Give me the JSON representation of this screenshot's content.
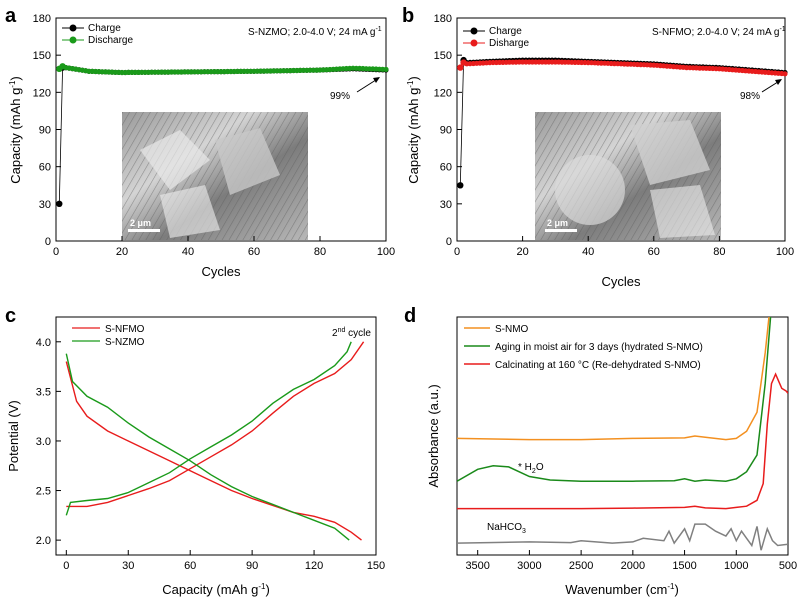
{
  "chart_data": [
    {
      "panel": "a",
      "type": "scatter",
      "title": "",
      "xlabel": "Cycles",
      "ylabel": "Capacity (mAh g-1)",
      "ylabel_main": "Capacity (mAh g",
      "ylabel_sup": "-1",
      "ylabel_close": ")",
      "xlim": [
        0,
        100
      ],
      "ylim": [
        0,
        180
      ],
      "xticks": [
        0,
        20,
        40,
        60,
        80,
        100
      ],
      "yticks": [
        0,
        30,
        60,
        90,
        120,
        150,
        180
      ],
      "condition": "S-NZMO; 2.0-4.0 V; 24 mA g-1",
      "condition_main": "S-NZMO; 2.0-4.0 V; 24 mA g",
      "condition_sup": "-1",
      "retention_label": "99%",
      "inset_scale": "2 μm",
      "series": [
        {
          "name": "Charge",
          "color": "#000000",
          "first": [
            1,
            30
          ],
          "second": [
            2,
            140
          ],
          "level_points": [
            [
              3,
              140
            ],
            [
              10,
              137
            ],
            [
              20,
              136
            ],
            [
              40,
              136.5
            ],
            [
              60,
              137
            ],
            [
              80,
              138
            ],
            [
              90,
              139
            ],
            [
              100,
              138
            ]
          ]
        },
        {
          "name": "Discharge",
          "color": "#1a9a1a",
          "first": [
            1,
            139
          ],
          "second": [
            2,
            141
          ],
          "level_points": [
            [
              3,
              140
            ],
            [
              10,
              137
            ],
            [
              20,
              136
            ],
            [
              40,
              136.5
            ],
            [
              60,
              137
            ],
            [
              80,
              138
            ],
            [
              90,
              139.5
            ],
            [
              100,
              138.5
            ]
          ]
        }
      ]
    },
    {
      "panel": "b",
      "type": "scatter",
      "title": "",
      "xlabel": "Cycles",
      "ylabel": "Capacity (mAh g-1)",
      "ylabel_main": "Capacity (mAh g",
      "ylabel_sup": "-1",
      "ylabel_close": ")",
      "xlim": [
        0,
        100
      ],
      "ylim": [
        0,
        180
      ],
      "xticks": [
        0,
        20,
        40,
        60,
        80,
        100
      ],
      "yticks": [
        0,
        30,
        60,
        90,
        120,
        150,
        180
      ],
      "condition": "S-NFMO; 2.0-4.0 V; 24 mA g-1",
      "condition_main": "S-NFMO; 2.0-4.0 V; 24 mA g",
      "condition_sup": "-1",
      "retention_label": "98%",
      "inset_scale": "2 μm",
      "series": [
        {
          "name": "Charge",
          "color": "#000000",
          "first": [
            1,
            45
          ],
          "second": [
            2,
            146
          ],
          "level_points": [
            [
              3,
              144
            ],
            [
              10,
              145
            ],
            [
              20,
              146
            ],
            [
              30,
              146
            ],
            [
              40,
              145
            ],
            [
              50,
              144
            ],
            [
              60,
              143
            ],
            [
              70,
              141
            ],
            [
              80,
              140
            ],
            [
              90,
              138
            ],
            [
              100,
              136
            ]
          ]
        },
        {
          "name": "Disharge",
          "color": "#e81c1c",
          "first": [
            1,
            140
          ],
          "second": [
            2,
            144
          ],
          "level_points": [
            [
              3,
              143
            ],
            [
              10,
              144
            ],
            [
              20,
              144.5
            ],
            [
              30,
              144.5
            ],
            [
              40,
              144
            ],
            [
              50,
              143
            ],
            [
              60,
              142
            ],
            [
              70,
              140
            ],
            [
              80,
              139
            ],
            [
              90,
              137
            ],
            [
              100,
              135
            ]
          ]
        }
      ]
    },
    {
      "panel": "c",
      "type": "line",
      "title": "",
      "xlabel": "Capacity (mAh g-1)",
      "xlabel_main": "Capacity (mAh g",
      "xlabel_sup": "-1",
      "xlabel_close": ")",
      "ylabel": "Potential (V)",
      "xlim": [
        -5,
        150
      ],
      "ylim": [
        1.85,
        4.25
      ],
      "xticks": [
        0,
        30,
        60,
        90,
        120,
        150
      ],
      "yticks": [
        2.0,
        2.5,
        3.0,
        3.5,
        4.0
      ],
      "ytick_labels": [
        "2.0",
        "2.5",
        "3.0",
        "3.5",
        "4.0"
      ],
      "cycle_label_num": "2",
      "cycle_label_sup": "nd",
      "cycle_label_rest": " cycle",
      "series": [
        {
          "name": "S-NFMO",
          "color": "#e81c1c",
          "charge": [
            [
              0,
              2.34
            ],
            [
              10,
              2.34
            ],
            [
              20,
              2.38
            ],
            [
              30,
              2.45
            ],
            [
              40,
              2.52
            ],
            [
              50,
              2.6
            ],
            [
              60,
              2.72
            ],
            [
              70,
              2.84
            ],
            [
              80,
              2.96
            ],
            [
              90,
              3.1
            ],
            [
              100,
              3.28
            ],
            [
              110,
              3.45
            ],
            [
              120,
              3.58
            ],
            [
              130,
              3.68
            ],
            [
              138,
              3.82
            ],
            [
              144,
              4.0
            ]
          ],
          "discharge": [
            [
              0,
              3.8
            ],
            [
              5,
              3.4
            ],
            [
              10,
              3.25
            ],
            [
              20,
              3.1
            ],
            [
              30,
              3.0
            ],
            [
              40,
              2.9
            ],
            [
              50,
              2.8
            ],
            [
              60,
              2.7
            ],
            [
              70,
              2.6
            ],
            [
              80,
              2.5
            ],
            [
              90,
              2.42
            ],
            [
              100,
              2.35
            ],
            [
              110,
              2.28
            ],
            [
              120,
              2.24
            ],
            [
              130,
              2.18
            ],
            [
              138,
              2.08
            ],
            [
              143,
              2.0
            ]
          ]
        },
        {
          "name": "S-NZMO",
          "color": "#1a9a1a",
          "charge": [
            [
              0,
              2.25
            ],
            [
              2,
              2.38
            ],
            [
              10,
              2.4
            ],
            [
              20,
              2.42
            ],
            [
              30,
              2.48
            ],
            [
              40,
              2.58
            ],
            [
              50,
              2.68
            ],
            [
              60,
              2.82
            ],
            [
              70,
              2.94
            ],
            [
              80,
              3.06
            ],
            [
              90,
              3.2
            ],
            [
              100,
              3.38
            ],
            [
              110,
              3.52
            ],
            [
              120,
              3.62
            ],
            [
              130,
              3.76
            ],
            [
              136,
              3.9
            ],
            [
              138,
              4.0
            ]
          ],
          "discharge": [
            [
              0,
              3.88
            ],
            [
              3,
              3.6
            ],
            [
              10,
              3.45
            ],
            [
              20,
              3.34
            ],
            [
              30,
              3.18
            ],
            [
              40,
              3.04
            ],
            [
              50,
              2.92
            ],
            [
              60,
              2.8
            ],
            [
              70,
              2.66
            ],
            [
              80,
              2.54
            ],
            [
              90,
              2.44
            ],
            [
              100,
              2.36
            ],
            [
              110,
              2.28
            ],
            [
              120,
              2.2
            ],
            [
              130,
              2.12
            ],
            [
              137,
              2.0
            ]
          ]
        }
      ]
    },
    {
      "panel": "d",
      "type": "line",
      "title": "",
      "xlabel": "Wavenumber (cm-1)",
      "xlabel_main": "Wavenumber (cm",
      "xlabel_sup": "-1",
      "xlabel_close": ")",
      "ylabel": "Absorbance (a.u.)",
      "xlim": [
        3700,
        500
      ],
      "ylim": [
        0,
        10
      ],
      "xticks": [
        3500,
        3000,
        2500,
        2000,
        1500,
        1000,
        500
      ],
      "water_label_main": "H",
      "water_label_sub": "2",
      "water_label_end": "O",
      "nahco3_main": "NaHCO",
      "nahco3_sub": "3",
      "series": [
        {
          "name": "S-NMO",
          "color": "#f39020",
          "points": [
            [
              3700,
              4.9
            ],
            [
              3000,
              4.85
            ],
            [
              2500,
              4.85
            ],
            [
              2000,
              4.9
            ],
            [
              1500,
              4.92
            ],
            [
              1400,
              5.0
            ],
            [
              1300,
              4.95
            ],
            [
              1100,
              4.85
            ],
            [
              1000,
              4.9
            ],
            [
              900,
              5.2
            ],
            [
              800,
              6.0
            ],
            [
              720,
              8.5
            ],
            [
              660,
              11
            ]
          ]
        },
        {
          "name": "Aging in moist air for 3 days (hydrated S-NMO)",
          "color": "#1a8a1a",
          "points": [
            [
              3700,
              3.1
            ],
            [
              3500,
              3.6
            ],
            [
              3350,
              3.75
            ],
            [
              3200,
              3.7
            ],
            [
              3000,
              3.3
            ],
            [
              2800,
              3.15
            ],
            [
              2500,
              3.1
            ],
            [
              2000,
              3.1
            ],
            [
              1600,
              3.12
            ],
            [
              1500,
              3.2
            ],
            [
              1400,
              3.1
            ],
            [
              1300,
              3.15
            ],
            [
              1100,
              3.1
            ],
            [
              1000,
              3.2
            ],
            [
              900,
              3.5
            ],
            [
              800,
              4.2
            ],
            [
              720,
              7.2
            ],
            [
              650,
              11
            ]
          ]
        },
        {
          "name": "Calcinating at 160 °C (Re-dehydrated S-NMO)",
          "color": "#e81c1c",
          "points": [
            [
              3700,
              1.95
            ],
            [
              3000,
              1.95
            ],
            [
              2500,
              1.95
            ],
            [
              2000,
              1.97
            ],
            [
              1500,
              2.0
            ],
            [
              1400,
              2.05
            ],
            [
              1300,
              1.98
            ],
            [
              1100,
              1.95
            ],
            [
              1000,
              2.0
            ],
            [
              900,
              2.05
            ],
            [
              800,
              2.3
            ],
            [
              740,
              3.0
            ],
            [
              700,
              5.5
            ],
            [
              660,
              7.2
            ],
            [
              620,
              7.6
            ],
            [
              590,
              7.3
            ],
            [
              560,
              7.0
            ],
            [
              520,
              6.9
            ],
            [
              500,
              6.8
            ]
          ]
        },
        {
          "name": "NaHCO3",
          "color": "#808080",
          "points": [
            [
              3700,
              0.5
            ],
            [
              3400,
              0.52
            ],
            [
              3000,
              0.55
            ],
            [
              2600,
              0.52
            ],
            [
              2500,
              0.6
            ],
            [
              2200,
              0.5
            ],
            [
              2000,
              0.55
            ],
            [
              1900,
              0.7
            ],
            [
              1700,
              0.6
            ],
            [
              1650,
              1.0
            ],
            [
              1600,
              0.5
            ],
            [
              1500,
              1.1
            ],
            [
              1450,
              0.6
            ],
            [
              1400,
              1.3
            ],
            [
              1300,
              1.3
            ],
            [
              1200,
              1.0
            ],
            [
              1100,
              0.8
            ],
            [
              1050,
              1.1
            ],
            [
              1000,
              0.6
            ],
            [
              950,
              1.0
            ],
            [
              900,
              0.7
            ],
            [
              850,
              0.4
            ],
            [
              800,
              1.2
            ],
            [
              760,
              0.2
            ],
            [
              700,
              1.1
            ],
            [
              650,
              0.6
            ],
            [
              600,
              0.4
            ],
            [
              500,
              0.45
            ]
          ]
        }
      ]
    }
  ]
}
